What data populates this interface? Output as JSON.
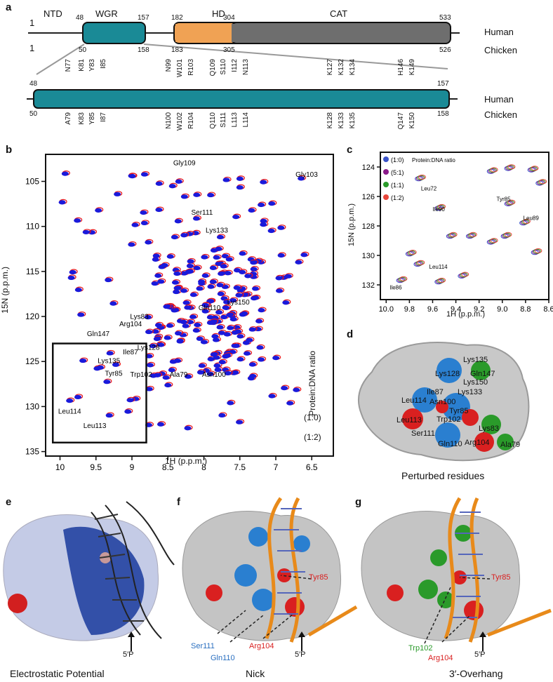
{
  "panels": {
    "a": "a",
    "b": "b",
    "c": "c",
    "d": "d",
    "e": "e",
    "f": "f",
    "g": "g"
  },
  "panel_a": {
    "domains": {
      "ntd": "NTD",
      "wgr": "WGR",
      "hd": "HD",
      "cat": "CAT"
    },
    "species": {
      "human": "Human",
      "chicken": "Chicken"
    },
    "human_nums": {
      "start": "1",
      "wgr_start": "48",
      "wgr_end": "157",
      "hd_start": "182",
      "cat_start": "304",
      "end": "533"
    },
    "chicken_nums": {
      "start": "1",
      "wgr_start": "50",
      "wgr_end": "158",
      "hd_start": "183",
      "cat_start": "305",
      "end": "526"
    },
    "zoom_nums": {
      "human_start": "48",
      "human_end": "157",
      "chicken_start": "50",
      "chicken_end": "158"
    },
    "human_res": [
      [
        "N77"
      ],
      [
        "K81"
      ],
      [
        "Y83"
      ],
      [
        "I85"
      ],
      [
        "N99"
      ],
      [
        "W101"
      ],
      [
        "R103"
      ],
      [
        "Q109"
      ],
      [
        "S110"
      ],
      [
        "I112"
      ],
      [
        "N113"
      ],
      [
        "K127"
      ],
      [
        "K132"
      ],
      [
        "K134"
      ],
      [
        "H146"
      ],
      [
        "K149"
      ]
    ],
    "chicken_res": [
      [
        "A79"
      ],
      [
        "K83"
      ],
      [
        "Y85"
      ],
      [
        "I87"
      ],
      [
        "N100"
      ],
      [
        "W102"
      ],
      [
        "R104"
      ],
      [
        "Q110"
      ],
      [
        "S111"
      ],
      [
        "L113"
      ],
      [
        "L114"
      ],
      [
        "K128"
      ],
      [
        "K133"
      ],
      [
        "K135"
      ],
      [
        "Q147"
      ],
      [
        "K150"
      ]
    ]
  },
  "panel_b": {
    "xlabel": "1H (p.p.m.)",
    "ylabel": "15N (p.p.m.)",
    "ratio_label": "Protein:DNA ratio",
    "legend": [
      {
        "label": "(1:0)",
        "color": "#1a1adb"
      },
      {
        "label": "(1:2)",
        "color": "#e8161b"
      }
    ],
    "x_ticks": [
      "10",
      "9.5",
      "9",
      "8.5",
      "8",
      "7.5",
      "7",
      "6.5"
    ],
    "y_ticks": [
      "105",
      "110",
      "115",
      "120",
      "125",
      "130",
      "135"
    ],
    "peaks": [
      "Gly109",
      "Gly103",
      "Ser111",
      "Lys133",
      "Lys150",
      "Gln110",
      "Gln147",
      "Arg104",
      "Lys83",
      "Lys128",
      "Ile87",
      "Lys135",
      "Tyr85",
      "Trp102",
      "Ala79",
      "Asn100",
      "Leu114",
      "Leu113"
    ]
  },
  "panel_c": {
    "xlabel": "1H (p.p.m.)",
    "ylabel": "15N (p.p.m.)",
    "ratio_label": "Protein:DNA ratio",
    "legend": [
      {
        "label": "(1:0)",
        "color": "#3a53c8"
      },
      {
        "label": "(5:1)",
        "color": "#8a1a8a"
      },
      {
        "label": "(1:1)",
        "color": "#2a9a2a"
      },
      {
        "label": "(1:2)",
        "color": "#e8463b"
      }
    ],
    "x_ticks": [
      "10.0",
      "9.8",
      "9.6",
      "9.4",
      "9.2",
      "9.0",
      "8.8",
      "8.6"
    ],
    "y_ticks": [
      "124",
      "126",
      "128",
      "130",
      "132"
    ],
    "peaks": [
      "Leu72",
      "Tyr85",
      "Leu89",
      "Ile90",
      "Leu114",
      "Ile86"
    ]
  },
  "panel_d": {
    "caption": "Perturbed residues",
    "labels": [
      "Lys135",
      "Lys128",
      "Gln147",
      "Lys150",
      "Ile87",
      "Lys133",
      "Leu114",
      "Asn100",
      "Tyr85",
      "Leu113",
      "Trp102",
      "Lys83",
      "Ser111",
      "Gln110",
      "Arg104",
      "Ala79"
    ]
  },
  "panel_e": {
    "caption": "Electrostatic Potential",
    "end_label": "5′P"
  },
  "panel_f": {
    "caption": "Nick",
    "end_label": "5′P",
    "labels": {
      "tyr85": "Tyr85",
      "ser111": "Ser111",
      "gln110": "Gln110",
      "arg104": "Arg104"
    }
  },
  "panel_g": {
    "caption": "3′-Overhang",
    "end_label": "5′P",
    "labels": {
      "tyr85": "Tyr85",
      "trp102": "Trp102",
      "arg104": "Arg104"
    }
  }
}
